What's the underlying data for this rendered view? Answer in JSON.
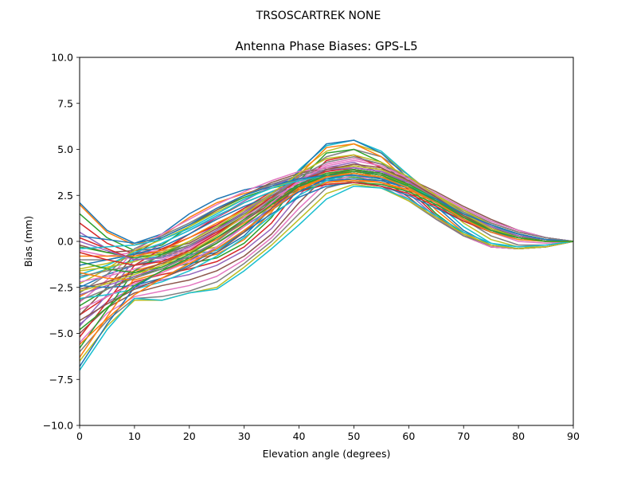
{
  "chart_data": {
    "type": "line",
    "suptitle": "TRSOSCARTREK    NONE",
    "title": "Antenna Phase Biases: GPS-L5",
    "xlabel": "Elevation angle (degrees)",
    "ylabel": "Bias (mm)",
    "xlim": [
      0,
      90
    ],
    "ylim": [
      -10,
      10
    ],
    "xticks": [
      0,
      10,
      20,
      30,
      40,
      50,
      60,
      70,
      80,
      90
    ],
    "yticks": [
      -10.0,
      -7.5,
      -5.0,
      -2.5,
      0.0,
      2.5,
      5.0,
      7.5,
      10.0
    ],
    "xtick_labels": [
      "0",
      "10",
      "20",
      "30",
      "40",
      "50",
      "60",
      "70",
      "80",
      "90"
    ],
    "ytick_labels": [
      "−10.0",
      "−7.5",
      "−5.0",
      "−2.5",
      "0.0",
      "2.5",
      "5.0",
      "7.5",
      "10.0"
    ],
    "grid": false,
    "x": [
      0,
      5,
      10,
      15,
      20,
      25,
      30,
      35,
      40,
      45,
      50,
      55,
      60,
      65,
      70,
      75,
      80,
      85,
      90
    ],
    "palette": [
      "#1f77b4",
      "#ff7f0e",
      "#2ca02c",
      "#d62728",
      "#9467bd",
      "#8c564b",
      "#e377c2",
      "#7f7f7f",
      "#bcbd22",
      "#17becf"
    ],
    "series": [
      {
        "values": [
          2.1,
          0.6,
          -0.1,
          0.4,
          1.5,
          2.3,
          2.8,
          3.1,
          3.4,
          3.6,
          3.8,
          3.7,
          3.3,
          2.6,
          1.8,
          1.1,
          0.6,
          0.2,
          0.0
        ]
      },
      {
        "values": [
          2.0,
          0.5,
          -0.2,
          0.3,
          1.3,
          2.1,
          2.6,
          3.0,
          3.3,
          3.5,
          3.6,
          3.5,
          3.1,
          2.5,
          1.7,
          1.0,
          0.5,
          0.2,
          0.0
        ]
      },
      {
        "values": [
          1.5,
          0.2,
          -0.5,
          -0.2,
          0.8,
          1.7,
          2.4,
          2.9,
          3.2,
          3.4,
          3.5,
          3.3,
          2.9,
          2.3,
          1.5,
          0.8,
          0.4,
          0.1,
          0.0
        ]
      },
      {
        "values": [
          1.0,
          -0.1,
          -0.7,
          -0.5,
          0.4,
          1.3,
          2.1,
          2.7,
          3.1,
          3.3,
          3.4,
          3.2,
          2.8,
          2.2,
          1.4,
          0.7,
          0.3,
          0.1,
          0.0
        ]
      },
      {
        "values": [
          0.5,
          -0.4,
          -1.0,
          -0.8,
          0.0,
          0.9,
          1.8,
          2.5,
          3.0,
          3.3,
          3.4,
          3.2,
          2.8,
          2.1,
          1.3,
          0.6,
          0.2,
          0.0,
          0.0
        ]
      },
      {
        "values": [
          -0.2,
          -0.6,
          -0.5,
          -0.4,
          -0.1,
          0.7,
          1.6,
          2.5,
          3.3,
          3.9,
          4.1,
          3.9,
          3.3,
          2.5,
          1.5,
          0.7,
          0.2,
          0.0,
          0.0
        ]
      },
      {
        "values": [
          -0.5,
          -0.8,
          -0.6,
          -0.5,
          -0.3,
          0.4,
          1.4,
          2.4,
          3.4,
          4.2,
          4.5,
          4.2,
          3.4,
          2.4,
          1.3,
          0.5,
          0.0,
          -0.1,
          0.0
        ]
      },
      {
        "values": [
          -1.0,
          -1.0,
          -0.7,
          -0.6,
          -0.5,
          0.1,
          1.1,
          2.3,
          3.6,
          4.6,
          5.0,
          4.6,
          3.6,
          2.4,
          1.2,
          0.3,
          -0.2,
          -0.2,
          0.0
        ]
      },
      {
        "values": [
          -1.5,
          -1.2,
          -0.8,
          -0.7,
          -0.6,
          -0.3,
          0.8,
          2.2,
          3.8,
          4.9,
          5.3,
          4.8,
          3.6,
          2.3,
          1.0,
          0.1,
          -0.3,
          -0.3,
          0.0
        ]
      },
      {
        "values": [
          -2.0,
          -1.5,
          -1.0,
          -0.8,
          -0.7,
          -0.5,
          0.5,
          2.0,
          3.9,
          5.2,
          5.5,
          4.9,
          3.6,
          2.1,
          0.8,
          -0.1,
          -0.4,
          -0.3,
          0.0
        ]
      },
      {
        "values": [
          -2.5,
          -1.8,
          -1.3,
          -1.0,
          -0.9,
          -0.6,
          0.3,
          1.8,
          3.8,
          5.3,
          5.5,
          4.8,
          3.4,
          1.9,
          0.6,
          -0.2,
          -0.4,
          -0.3,
          0.0
        ]
      },
      {
        "values": [
          -3.0,
          -2.2,
          -1.6,
          -1.2,
          -1.0,
          -0.7,
          0.1,
          1.6,
          3.6,
          5.1,
          5.3,
          4.6,
          3.2,
          1.7,
          0.5,
          -0.3,
          -0.4,
          -0.3,
          0.0
        ]
      },
      {
        "values": [
          -3.5,
          -2.6,
          -1.9,
          -1.5,
          -1.2,
          -0.9,
          -0.1,
          1.3,
          3.3,
          4.8,
          5.0,
          4.3,
          3.0,
          1.5,
          0.4,
          -0.3,
          -0.4,
          -0.3,
          0.0
        ]
      },
      {
        "values": [
          -4.0,
          -3.0,
          -2.2,
          -1.8,
          -1.5,
          -1.1,
          -0.3,
          1.0,
          2.9,
          4.4,
          4.7,
          4.0,
          2.8,
          1.4,
          0.3,
          -0.3,
          -0.4,
          -0.3,
          0.0
        ]
      },
      {
        "values": [
          -4.5,
          -3.3,
          -2.5,
          -2.1,
          -1.8,
          -1.3,
          -0.5,
          0.7,
          2.5,
          4.0,
          4.3,
          3.7,
          2.6,
          1.3,
          0.3,
          -0.3,
          -0.4,
          -0.3,
          0.0
        ]
      },
      {
        "values": [
          -5.0,
          -3.6,
          -2.8,
          -2.4,
          -2.1,
          -1.6,
          -0.8,
          0.4,
          2.1,
          3.6,
          3.9,
          3.4,
          2.4,
          1.2,
          0.3,
          -0.3,
          -0.4,
          -0.3,
          0.0
        ]
      },
      {
        "values": [
          -5.5,
          -3.9,
          -3.0,
          -2.7,
          -2.4,
          -1.9,
          -1.0,
          0.2,
          1.8,
          3.2,
          3.6,
          3.2,
          2.3,
          1.2,
          0.3,
          -0.3,
          -0.4,
          -0.3,
          0.0
        ]
      },
      {
        "values": [
          -6.0,
          -4.3,
          -3.1,
          -3.0,
          -2.7,
          -2.2,
          -1.2,
          0.0,
          1.5,
          2.9,
          3.3,
          3.0,
          2.2,
          1.2,
          0.3,
          -0.2,
          -0.4,
          -0.3,
          0.0
        ]
      },
      {
        "values": [
          -6.5,
          -4.6,
          -3.2,
          -3.2,
          -2.8,
          -2.5,
          -1.4,
          -0.2,
          1.2,
          2.6,
          3.1,
          2.9,
          2.2,
          1.3,
          0.4,
          -0.2,
          -0.4,
          -0.3,
          0.0
        ]
      },
      {
        "values": [
          -7.0,
          -4.8,
          -3.1,
          -3.2,
          -2.8,
          -2.6,
          -1.6,
          -0.4,
          0.9,
          2.3,
          3.0,
          2.9,
          2.3,
          1.4,
          0.5,
          -0.1,
          -0.3,
          -0.2,
          0.0
        ]
      },
      {
        "values": [
          -6.8,
          -4.5,
          -2.5,
          -1.6,
          -1.0,
          -0.4,
          0.5,
          1.5,
          2.4,
          3.0,
          3.2,
          3.0,
          2.5,
          1.8,
          1.1,
          0.5,
          0.2,
          0.0,
          0.0
        ]
      },
      {
        "values": [
          -6.3,
          -4.1,
          -2.0,
          -1.1,
          -0.6,
          0.1,
          1.0,
          1.9,
          2.7,
          3.2,
          3.4,
          3.2,
          2.7,
          2.0,
          1.3,
          0.7,
          0.3,
          0.1,
          0.0
        ]
      },
      {
        "values": [
          -5.8,
          -3.7,
          -1.6,
          -0.7,
          -0.2,
          0.5,
          1.4,
          2.3,
          3.0,
          3.5,
          3.7,
          3.5,
          3.0,
          2.3,
          1.5,
          0.9,
          0.4,
          0.1,
          0.0
        ]
      },
      {
        "values": [
          -5.2,
          -3.3,
          -1.3,
          -0.4,
          0.2,
          0.9,
          1.8,
          2.7,
          3.3,
          3.7,
          3.9,
          3.7,
          3.2,
          2.5,
          1.7,
          1.0,
          0.5,
          0.2,
          0.0
        ]
      },
      {
        "values": [
          -4.6,
          -2.9,
          -1.0,
          -0.1,
          0.6,
          1.3,
          2.2,
          3.0,
          3.6,
          3.9,
          4.0,
          3.8,
          3.3,
          2.6,
          1.8,
          1.1,
          0.6,
          0.2,
          0.0
        ]
      },
      {
        "values": [
          -4.0,
          -2.5,
          -0.7,
          0.2,
          0.9,
          1.7,
          2.5,
          3.2,
          3.7,
          4.0,
          4.1,
          3.9,
          3.4,
          2.7,
          1.9,
          1.2,
          0.6,
          0.2,
          0.0
        ]
      },
      {
        "values": [
          -3.3,
          -2.1,
          -0.5,
          0.4,
          1.2,
          2.0,
          2.7,
          3.3,
          3.8,
          4.0,
          4.0,
          3.8,
          3.3,
          2.6,
          1.8,
          1.1,
          0.6,
          0.2,
          0.0
        ]
      },
      {
        "values": [
          -2.8,
          -1.8,
          -0.4,
          0.3,
          1.0,
          1.8,
          2.5,
          3.1,
          3.6,
          3.9,
          3.9,
          3.7,
          3.2,
          2.5,
          1.7,
          1.0,
          0.5,
          0.2,
          0.0
        ]
      },
      {
        "values": [
          -2.3,
          -1.5,
          -0.5,
          0.1,
          0.8,
          1.6,
          2.3,
          2.9,
          3.4,
          3.7,
          3.8,
          3.6,
          3.1,
          2.4,
          1.6,
          0.9,
          0.4,
          0.1,
          0.0
        ]
      },
      {
        "values": [
          -1.8,
          -1.3,
          -0.6,
          -0.1,
          0.6,
          1.4,
          2.1,
          2.7,
          3.2,
          3.5,
          3.6,
          3.4,
          3.0,
          2.3,
          1.5,
          0.8,
          0.4,
          0.1,
          0.0
        ]
      },
      {
        "values": [
          -1.3,
          -1.0,
          -0.7,
          -0.3,
          0.4,
          1.2,
          1.9,
          2.5,
          3.0,
          3.3,
          3.4,
          3.3,
          2.9,
          2.2,
          1.4,
          0.7,
          0.3,
          0.1,
          0.0
        ]
      },
      {
        "values": [
          -0.8,
          -0.8,
          -0.8,
          -0.5,
          0.2,
          1.0,
          1.7,
          2.4,
          2.9,
          3.2,
          3.3,
          3.2,
          2.8,
          2.1,
          1.3,
          0.7,
          0.3,
          0.1,
          0.0
        ]
      },
      {
        "values": [
          -0.3,
          -0.6,
          -0.9,
          -0.7,
          0.0,
          0.8,
          1.5,
          2.2,
          2.8,
          3.1,
          3.2,
          3.1,
          2.7,
          2.0,
          1.2,
          0.6,
          0.2,
          0.0,
          0.0
        ]
      },
      {
        "values": [
          0.2,
          -0.4,
          -1.0,
          -0.9,
          -0.3,
          0.5,
          1.3,
          2.0,
          2.7,
          3.1,
          3.2,
          3.0,
          2.6,
          1.9,
          1.1,
          0.5,
          0.2,
          0.0,
          0.0
        ]
      },
      {
        "values": [
          -2.9,
          -2.4,
          -1.9,
          -1.4,
          -0.8,
          -0.1,
          0.8,
          1.8,
          2.8,
          3.5,
          3.8,
          3.6,
          3.0,
          2.2,
          1.3,
          0.6,
          0.2,
          0.0,
          0.0
        ]
      },
      {
        "values": [
          -2.6,
          -2.2,
          -1.7,
          -1.2,
          -0.6,
          0.2,
          1.1,
          2.1,
          3.0,
          3.6,
          3.9,
          3.7,
          3.1,
          2.3,
          1.4,
          0.7,
          0.3,
          0.0,
          0.0
        ]
      },
      {
        "values": [
          -2.2,
          -1.9,
          -1.5,
          -1.0,
          -0.4,
          0.4,
          1.3,
          2.3,
          3.2,
          3.8,
          4.0,
          3.8,
          3.2,
          2.4,
          1.5,
          0.8,
          0.3,
          0.1,
          0.0
        ]
      },
      {
        "values": [
          -1.9,
          -1.6,
          -1.3,
          -0.8,
          -0.2,
          0.6,
          1.5,
          2.5,
          3.3,
          3.9,
          4.1,
          3.9,
          3.3,
          2.5,
          1.6,
          0.9,
          0.4,
          0.1,
          0.0
        ]
      },
      {
        "values": [
          -1.6,
          -1.4,
          -1.1,
          -0.6,
          0.0,
          0.8,
          1.7,
          2.6,
          3.4,
          3.9,
          4.1,
          3.9,
          3.3,
          2.5,
          1.7,
          0.9,
          0.4,
          0.1,
          0.0
        ]
      },
      {
        "values": [
          -3.1,
          -2.9,
          -2.6,
          -2.2,
          -1.6,
          -0.8,
          0.2,
          1.4,
          2.5,
          3.3,
          3.7,
          3.5,
          2.9,
          2.1,
          1.2,
          0.5,
          0.1,
          0.0,
          0.0
        ]
      },
      {
        "values": [
          -2.4,
          -2.5,
          -2.4,
          -2.0,
          -1.3,
          -0.4,
          0.6,
          1.7,
          2.7,
          3.4,
          3.7,
          3.5,
          2.9,
          2.1,
          1.2,
          0.5,
          0.2,
          0.0,
          0.0
        ]
      },
      {
        "values": [
          -1.7,
          -2.0,
          -2.1,
          -1.7,
          -1.0,
          -0.1,
          0.9,
          2.0,
          2.9,
          3.5,
          3.8,
          3.6,
          3.0,
          2.2,
          1.3,
          0.6,
          0.2,
          0.0,
          0.0
        ]
      },
      {
        "values": [
          -1.1,
          -1.5,
          -1.7,
          -1.4,
          -0.7,
          0.2,
          1.2,
          2.2,
          3.1,
          3.7,
          3.9,
          3.7,
          3.1,
          2.3,
          1.4,
          0.7,
          0.3,
          0.0,
          0.0
        ]
      },
      {
        "values": [
          -0.6,
          -1.0,
          -1.3,
          -1.1,
          -0.5,
          0.4,
          1.4,
          2.4,
          3.3,
          3.8,
          4.0,
          3.8,
          3.2,
          2.4,
          1.5,
          0.8,
          0.3,
          0.1,
          0.0
        ]
      },
      {
        "values": [
          0.0,
          -0.5,
          -1.0,
          -0.9,
          -0.3,
          0.6,
          1.6,
          2.6,
          3.4,
          3.9,
          4.0,
          3.8,
          3.2,
          2.4,
          1.5,
          0.8,
          0.3,
          0.1,
          0.0
        ]
      },
      {
        "values": [
          -4.3,
          -3.4,
          -2.6,
          -2.0,
          -1.4,
          -0.6,
          0.5,
          1.8,
          3.0,
          3.9,
          4.2,
          4.0,
          3.3,
          2.4,
          1.4,
          0.6,
          0.2,
          0.0,
          0.0
        ]
      },
      {
        "values": [
          -3.7,
          -3.0,
          -2.3,
          -1.7,
          -1.1,
          -0.3,
          0.8,
          2.1,
          3.3,
          4.1,
          4.4,
          4.1,
          3.4,
          2.5,
          1.5,
          0.7,
          0.2,
          0.0,
          0.0
        ]
      },
      {
        "values": [
          -3.2,
          -2.6,
          -2.0,
          -1.5,
          -0.8,
          0.0,
          1.1,
          2.3,
          3.5,
          4.3,
          4.6,
          4.2,
          3.5,
          2.5,
          1.5,
          0.7,
          0.2,
          0.0,
          0.0
        ]
      },
      {
        "values": [
          -2.7,
          -2.3,
          -1.8,
          -1.3,
          -0.6,
          0.3,
          1.4,
          2.6,
          3.7,
          4.5,
          4.7,
          4.3,
          3.5,
          2.5,
          1.5,
          0.7,
          0.2,
          0.0,
          0.0
        ]
      },
      {
        "values": [
          -0.4,
          -0.3,
          -0.2,
          0.1,
          0.7,
          1.5,
          2.3,
          2.9,
          3.3,
          3.6,
          3.6,
          3.4,
          3.0,
          2.3,
          1.5,
          0.9,
          0.4,
          0.1,
          0.0
        ]
      },
      {
        "values": [
          0.3,
          0.1,
          -0.1,
          0.2,
          0.9,
          1.8,
          2.5,
          3.0,
          3.4,
          3.6,
          3.6,
          3.4,
          2.9,
          2.3,
          1.5,
          0.9,
          0.4,
          0.1,
          0.0
        ]
      },
      {
        "values": [
          -5.6,
          -4.2,
          -2.9,
          -2.0,
          -1.2,
          -0.4,
          0.6,
          1.7,
          2.8,
          3.5,
          3.7,
          3.5,
          2.9,
          2.1,
          1.2,
          0.5,
          0.1,
          0.0,
          0.0
        ]
      },
      {
        "values": [
          -4.8,
          -3.6,
          -2.4,
          -1.6,
          -0.9,
          -0.1,
          0.9,
          2.0,
          3.0,
          3.6,
          3.8,
          3.6,
          3.0,
          2.2,
          1.3,
          0.6,
          0.2,
          0.0,
          0.0
        ]
      }
    ]
  }
}
